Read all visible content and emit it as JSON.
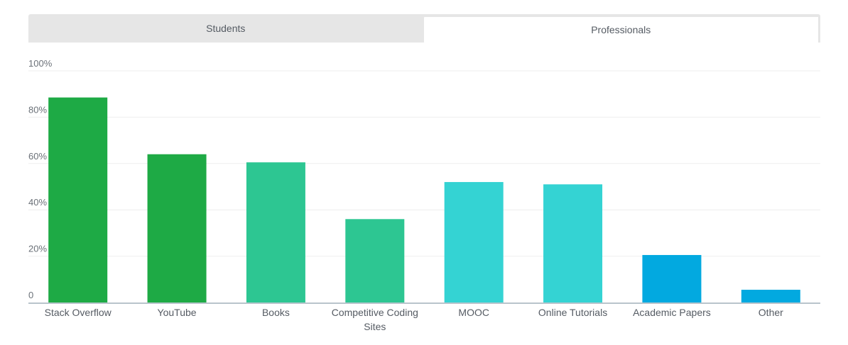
{
  "tabs": [
    {
      "label": "Students",
      "active": false
    },
    {
      "label": "Professionals",
      "active": true
    }
  ],
  "chart_data": {
    "type": "bar",
    "title": "",
    "xlabel": "",
    "ylabel": "",
    "ylim": [
      0,
      100
    ],
    "yticks": [
      "0",
      "20%",
      "40%",
      "60%",
      "80%",
      "100%"
    ],
    "ytick_values": [
      0,
      20,
      40,
      60,
      80,
      100
    ],
    "grid": true,
    "categories": [
      [
        "Stack Overflow"
      ],
      [
        "YouTube"
      ],
      [
        "Books"
      ],
      [
        "Competitive Coding",
        "Sites"
      ],
      [
        "MOOC"
      ],
      [
        "Online Tutorials"
      ],
      [
        "Academic Papers"
      ],
      [
        "Other"
      ]
    ],
    "values": [
      88.5,
      64,
      60.5,
      36,
      52,
      51,
      20.5,
      5.5
    ],
    "colors": [
      "#1eaa45",
      "#1eaa45",
      "#2dc692",
      "#2dc692",
      "#34d3d3",
      "#34d3d3",
      "#02a9e0",
      "#02a9e0"
    ]
  }
}
